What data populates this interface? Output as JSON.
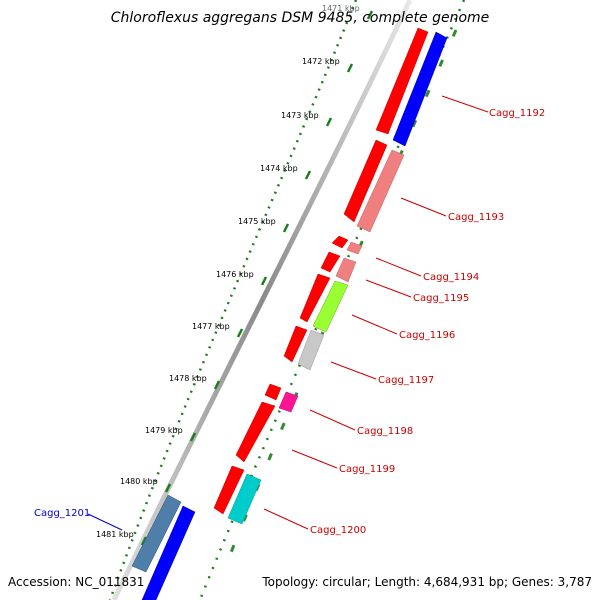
{
  "title": "Chloroflexus aggregans DSM 9485, complete genome",
  "footer": {
    "accession": "Accession: NC_011831",
    "summary": "Topology: circular; Length: 4,684,931 bp; Genes: 3,787"
  },
  "ticks": [
    {
      "label": "1471 kbp",
      "kbp": 1471
    },
    {
      "label": "1472 kbp",
      "kbp": 1472
    },
    {
      "label": "1473 kbp",
      "kbp": 1473
    },
    {
      "label": "1474 kbp",
      "kbp": 1474
    },
    {
      "label": "1475 kbp",
      "kbp": 1475
    },
    {
      "label": "1476 kbp",
      "kbp": 1476
    },
    {
      "label": "1477 kbp",
      "kbp": 1477
    },
    {
      "label": "1478 kbp",
      "kbp": 1478
    },
    {
      "label": "1479 kbp",
      "kbp": 1479
    },
    {
      "label": "1480 kbp",
      "kbp": 1480
    },
    {
      "label": "1481 kbp",
      "kbp": 1481
    }
  ],
  "gene_labels": [
    {
      "id": "Cagg_1192",
      "color": "#cc0000"
    },
    {
      "id": "Cagg_1193",
      "color": "#cc0000"
    },
    {
      "id": "Cagg_1194",
      "color": "#cc0000"
    },
    {
      "id": "Cagg_1195",
      "color": "#cc0000"
    },
    {
      "id": "Cagg_1196",
      "color": "#cc0000"
    },
    {
      "id": "Cagg_1197",
      "color": "#cc0000"
    },
    {
      "id": "Cagg_1198",
      "color": "#cc0000"
    },
    {
      "id": "Cagg_1199",
      "color": "#cc0000"
    },
    {
      "id": "Cagg_1200",
      "color": "#cc0000"
    },
    {
      "id": "Cagg_1201",
      "color": "#0000cc"
    }
  ],
  "colors": {
    "cds": "#ff0000",
    "gene_blue": "#0000ff",
    "gene_pink": "#f08080",
    "gene_lime": "#99ff33",
    "gene_gray": "#c8c8c8",
    "gene_magenta": "#ff1493",
    "gene_cyan": "#00cccc",
    "gene_steel": "#4f7fa8",
    "backbone": "#9a9a9a",
    "ticks_green": "#1a7f1a"
  }
}
